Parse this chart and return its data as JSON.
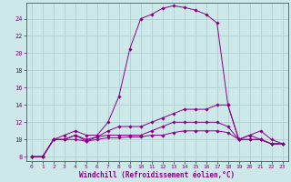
{
  "xlabel": "Windchill (Refroidissement éolien,°C)",
  "background_color": "#cde8e8",
  "grid_color": "#aacccc",
  "line_color": "#880088",
  "xlim": [
    -0.5,
    23.5
  ],
  "ylim": [
    7.5,
    25.8
  ],
  "xticks": [
    0,
    1,
    2,
    3,
    4,
    5,
    6,
    7,
    8,
    9,
    10,
    11,
    12,
    13,
    14,
    15,
    16,
    17,
    18,
    19,
    20,
    21,
    22,
    23
  ],
  "yticks": [
    8,
    10,
    12,
    14,
    16,
    18,
    20,
    22,
    24
  ],
  "lines": [
    {
      "x": [
        0,
        1,
        2,
        3,
        4,
        5,
        6,
        7,
        8,
        9,
        10,
        11,
        12,
        13,
        14,
        15,
        16,
        17,
        18,
        19,
        20,
        21,
        22,
        23
      ],
      "y": [
        8.0,
        8.0,
        10.0,
        10.5,
        11.0,
        10.5,
        10.5,
        12.0,
        15.0,
        20.5,
        24.0,
        24.5,
        25.2,
        25.5,
        25.3,
        25.0,
        24.5,
        23.5,
        14.0,
        10.0,
        10.5,
        10.0,
        9.5,
        9.5
      ]
    },
    {
      "x": [
        0,
        1,
        2,
        3,
        4,
        5,
        6,
        7,
        8,
        9,
        10,
        11,
        12,
        13,
        14,
        15,
        16,
        17,
        18,
        19,
        20,
        21,
        22,
        23
      ],
      "y": [
        8.0,
        8.0,
        10.0,
        10.0,
        10.5,
        10.0,
        10.3,
        11.0,
        11.5,
        11.5,
        11.5,
        12.0,
        12.5,
        13.0,
        13.5,
        13.5,
        13.5,
        14.0,
        14.0,
        10.0,
        10.0,
        10.0,
        9.5,
        9.5
      ]
    },
    {
      "x": [
        0,
        1,
        2,
        3,
        4,
        5,
        6,
        7,
        8,
        9,
        10,
        11,
        12,
        13,
        14,
        15,
        16,
        17,
        18,
        19,
        20,
        21,
        22,
        23
      ],
      "y": [
        8.0,
        8.0,
        10.0,
        10.0,
        10.5,
        9.8,
        10.3,
        10.5,
        10.5,
        10.5,
        10.5,
        11.0,
        11.5,
        12.0,
        12.0,
        12.0,
        12.0,
        12.0,
        11.5,
        10.0,
        10.5,
        11.0,
        10.0,
        9.5
      ]
    },
    {
      "x": [
        0,
        1,
        2,
        3,
        4,
        5,
        6,
        7,
        8,
        9,
        10,
        11,
        12,
        13,
        14,
        15,
        16,
        17,
        18,
        19,
        20,
        21,
        22,
        23
      ],
      "y": [
        8.0,
        8.0,
        10.0,
        10.0,
        10.0,
        9.8,
        10.0,
        10.2,
        10.2,
        10.3,
        10.3,
        10.5,
        10.5,
        10.8,
        11.0,
        11.0,
        11.0,
        11.0,
        10.8,
        10.0,
        10.0,
        10.0,
        9.5,
        9.5
      ]
    }
  ]
}
